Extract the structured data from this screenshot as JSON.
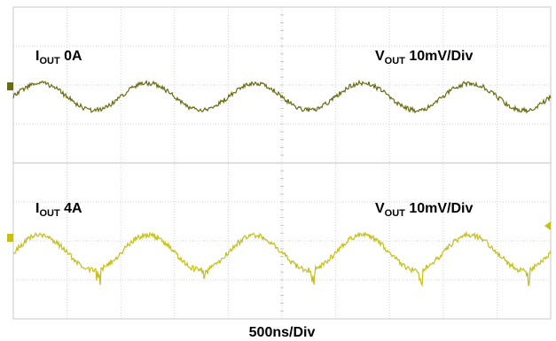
{
  "chart_data": {
    "type": "line",
    "xlabel": "500ns/Div",
    "time_per_div_ns": 500,
    "divisions": {
      "x": 10,
      "y": 8
    },
    "grid": true,
    "panels": [
      {
        "current_label": {
          "base": "I",
          "sub": "OUT",
          "value": " 0A"
        },
        "scale_label": {
          "base": "V",
          "sub": "OUT",
          "value": " 10mV/Div"
        },
        "color": "#6b6b12",
        "ripple_period_div": 2.0,
        "ripple_amplitude_div": 0.35,
        "noise_div": 0.06,
        "spikes": false
      },
      {
        "current_label": {
          "base": "I",
          "sub": "OUT",
          "value": " 4A"
        },
        "scale_label": {
          "base": "V",
          "sub": "OUT",
          "value": " 10mV/Div"
        },
        "color": "#c4bf1c",
        "ripple_period_div": 2.0,
        "ripple_amplitude_div": 0.45,
        "noise_div": 0.07,
        "spikes": true
      }
    ]
  }
}
